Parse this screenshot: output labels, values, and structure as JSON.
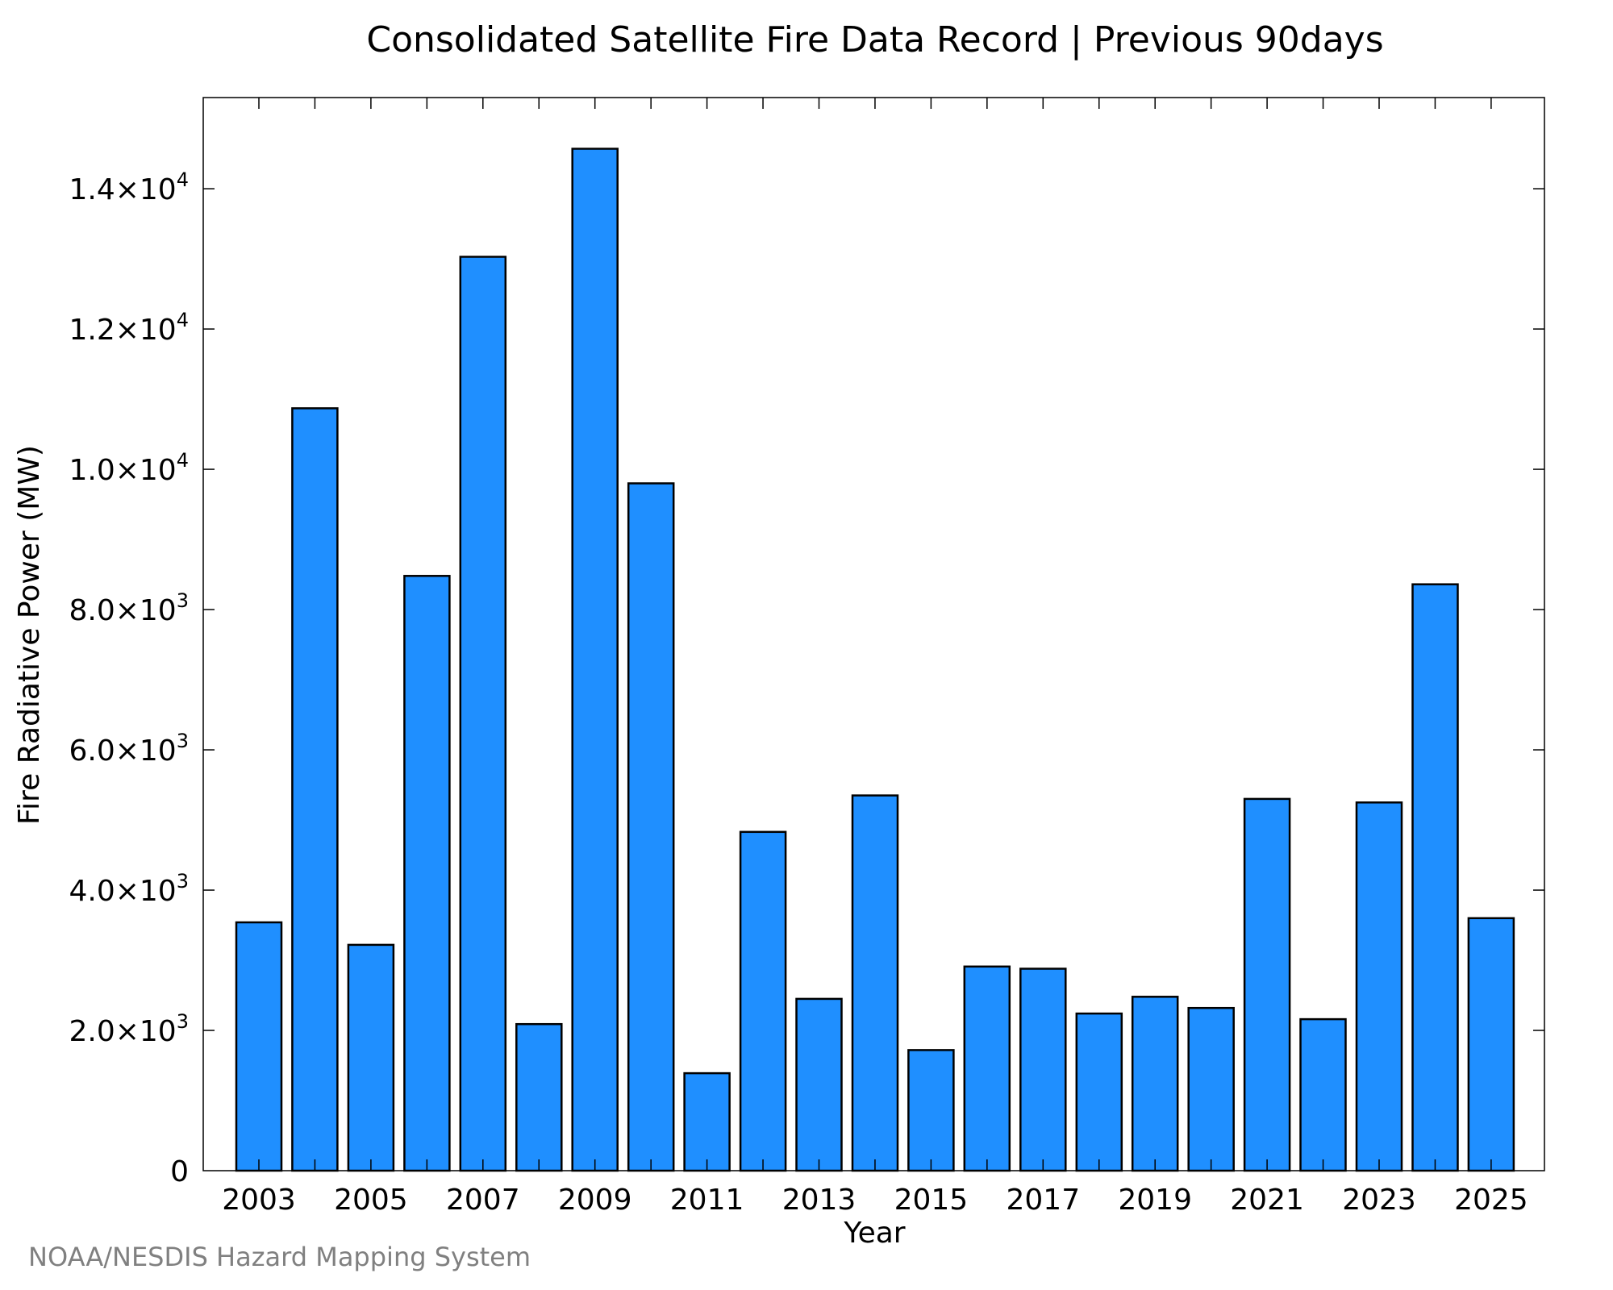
{
  "chart_data": {
    "type": "bar",
    "title": "Consolidated Satellite Fire Data Record | Previous 90days",
    "xlabel": "Year",
    "ylabel": "Fire Radiative Power (MW)",
    "categories": [
      "2003",
      "2004",
      "2005",
      "2006",
      "2007",
      "2008",
      "2009",
      "2010",
      "2011",
      "2012",
      "2013",
      "2014",
      "2015",
      "2016",
      "2017",
      "2018",
      "2019",
      "2020",
      "2021",
      "2022",
      "2023",
      "2024",
      "2025"
    ],
    "values": [
      3540,
      10870,
      3220,
      8480,
      13030,
      2090,
      14570,
      9800,
      1390,
      4830,
      2450,
      5350,
      1720,
      2910,
      2880,
      2240,
      2480,
      2320,
      5300,
      2160,
      5250,
      8360,
      3600
    ],
    "ylim": [
      0,
      15300
    ],
    "x_tick_labels": [
      "2003",
      "2005",
      "2007",
      "2009",
      "2011",
      "2013",
      "2015",
      "2017",
      "2019",
      "2021",
      "2023",
      "2025"
    ],
    "y_ticks": [
      {
        "value": 0,
        "mantissa": "0",
        "exponent": ""
      },
      {
        "value": 2000,
        "mantissa": "2.0×10",
        "exponent": "3"
      },
      {
        "value": 4000,
        "mantissa": "4.0×10",
        "exponent": "3"
      },
      {
        "value": 6000,
        "mantissa": "6.0×10",
        "exponent": "3"
      },
      {
        "value": 8000,
        "mantissa": "8.0×10",
        "exponent": "3"
      },
      {
        "value": 10000,
        "mantissa": "1.0×10",
        "exponent": "4"
      },
      {
        "value": 12000,
        "mantissa": "1.2×10",
        "exponent": "4"
      },
      {
        "value": 14000,
        "mantissa": "1.4×10",
        "exponent": "4"
      }
    ],
    "grid": false,
    "bar_color": "#1f8fff",
    "bar_edge_color": "#000000"
  },
  "credit": "NOAA/NESDIS Hazard Mapping System"
}
